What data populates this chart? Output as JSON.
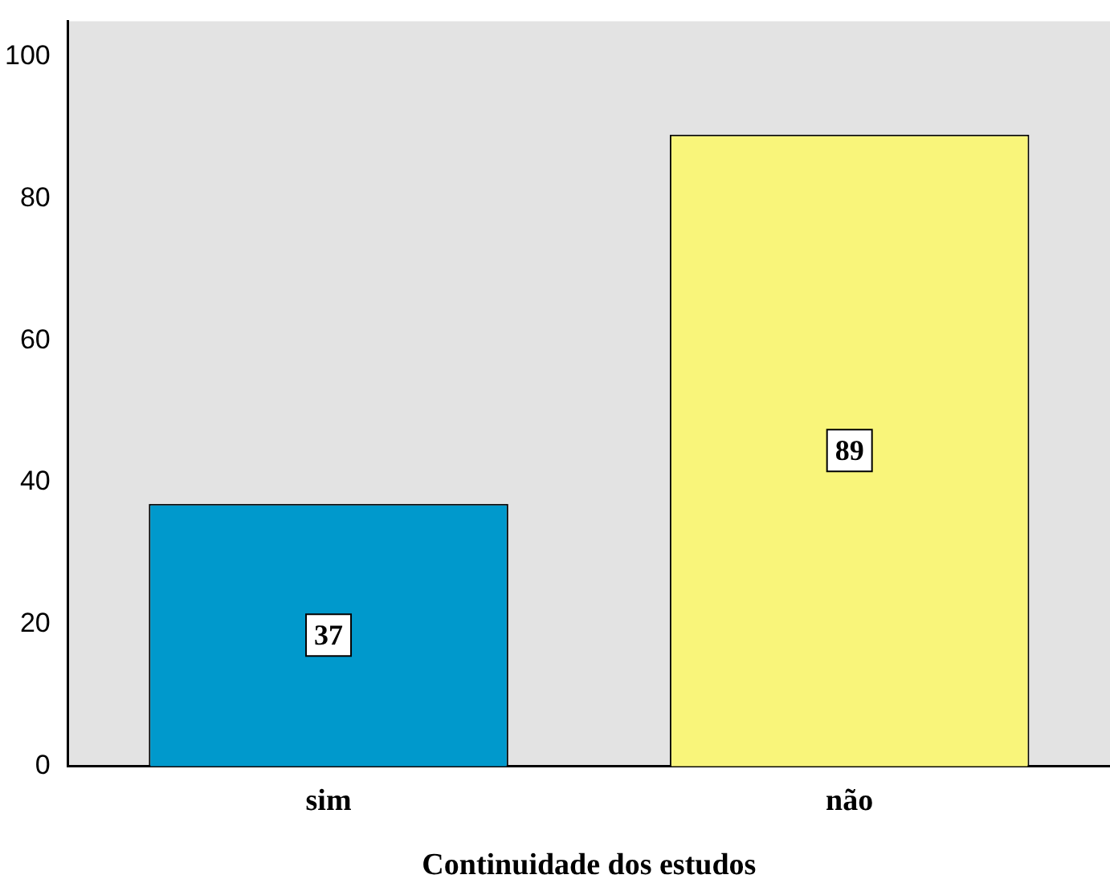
{
  "chart_data": {
    "type": "bar",
    "xlabel": "Continuidade dos estudos",
    "categories": [
      "sim",
      "não"
    ],
    "values": [
      37,
      89
    ],
    "colors": [
      "#0099cc",
      "#f9f57a"
    ],
    "ylim": [
      0,
      105
    ],
    "yticks": [
      0,
      20,
      40,
      60,
      80,
      100
    ],
    "grid": false,
    "legend": false,
    "data_labels": true
  }
}
